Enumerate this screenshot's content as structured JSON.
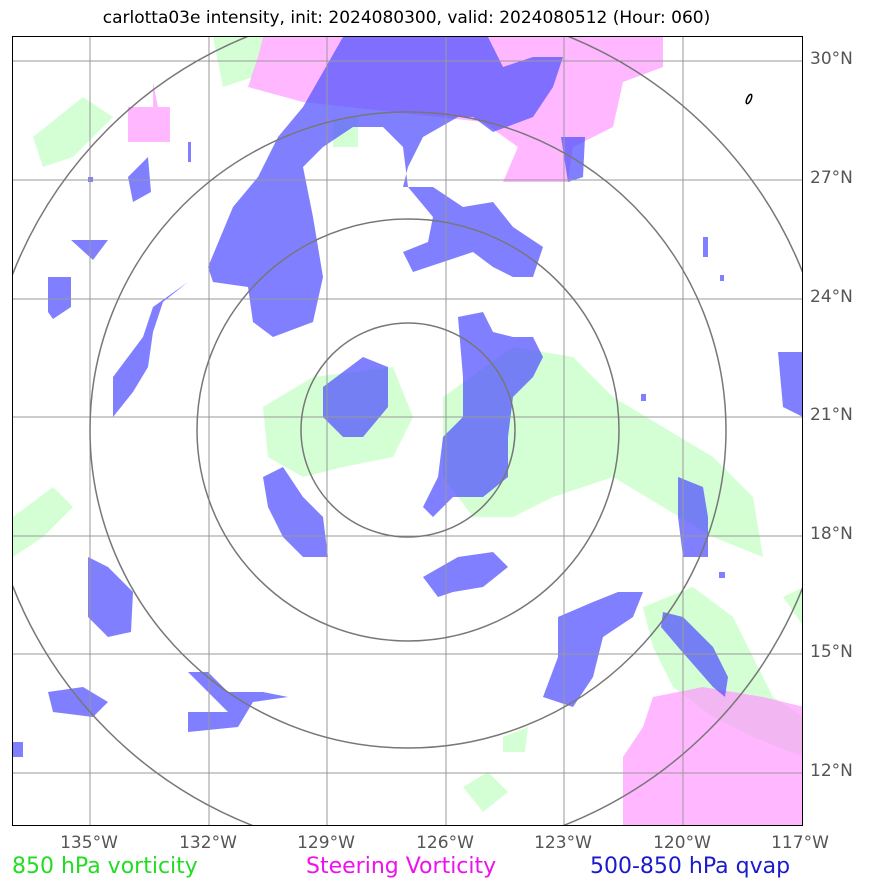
{
  "title": "carlotta03e intensity, init: 2024080300, valid: 2024080512 (Hour: 060)",
  "lat_labels": [
    "30°N",
    "27°N",
    "24°N",
    "21°N",
    "18°N",
    "15°N",
    "12°N"
  ],
  "lon_labels": [
    "135°W",
    "132°W",
    "129°W",
    "126°W",
    "123°W",
    "120°W",
    "117°W"
  ],
  "legend": {
    "vorticity_850": "850 hPa vorticity",
    "steering_vorticity": "Steering Vorticity",
    "qvap": "500-850 hPa qvap"
  },
  "colors": {
    "vorticity_850": "#22dd22",
    "steering_vorticity": "#ee11ee",
    "qvap": "#1a1acc",
    "green_fill": "#ccffcc",
    "pink_fill": "#ff99ff",
    "blue_fill": "#5555ff",
    "range_rings": "#777777",
    "grid": "#999999"
  }
}
